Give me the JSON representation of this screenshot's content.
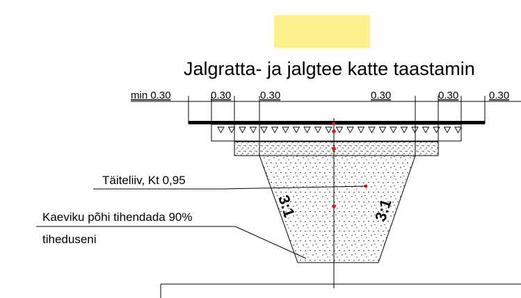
{
  "title": "Jalgratta- ja jalgtee katte taastamin",
  "dimensions": {
    "d1": "min 0.30",
    "d2": "0.30",
    "d3": "0.30",
    "d4": "0.30",
    "d5": "0.30",
    "d6": "0.30"
  },
  "notes": {
    "fill_label": "Täiteliiv, Kt 0,95",
    "base_line1": "Kaeviku põhi tihendada 90%",
    "base_line2": "tiheduseni"
  },
  "slopes": {
    "left": "3:1",
    "right": "3:1"
  },
  "colors": {
    "highlight": "#fdf18e",
    "marker": "#e8141b",
    "line": "#000000"
  }
}
